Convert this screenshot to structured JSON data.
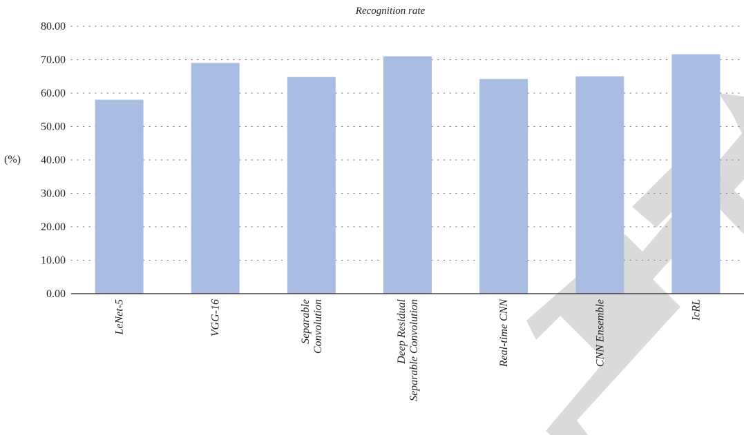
{
  "chart_data": {
    "type": "bar",
    "title": "Recognition rate",
    "ylabel": "(%)",
    "xlabel": "",
    "ylim": [
      0,
      80
    ],
    "yticks": [
      "0.00",
      "10.00",
      "20.00",
      "30.00",
      "40.00",
      "50.00",
      "60.00",
      "70.00",
      "80.00"
    ],
    "categories": [
      [
        "LeNet-5"
      ],
      [
        "VGG-16"
      ],
      [
        "Separable",
        "Convolution"
      ],
      [
        "Deep Residual",
        "Separable Convolution"
      ],
      [
        "Real-time CNN"
      ],
      [
        "CNN Ensemble"
      ],
      [
        "IcRL"
      ]
    ],
    "values": [
      58,
      69,
      64.8,
      71,
      64.2,
      65,
      71.6
    ],
    "grid": "horizontal dotted",
    "colors": {
      "bar": "#a9bde3",
      "axis": "#231f20",
      "grid": "#8a8a8a",
      "watermark": "#d6d6d6"
    }
  }
}
